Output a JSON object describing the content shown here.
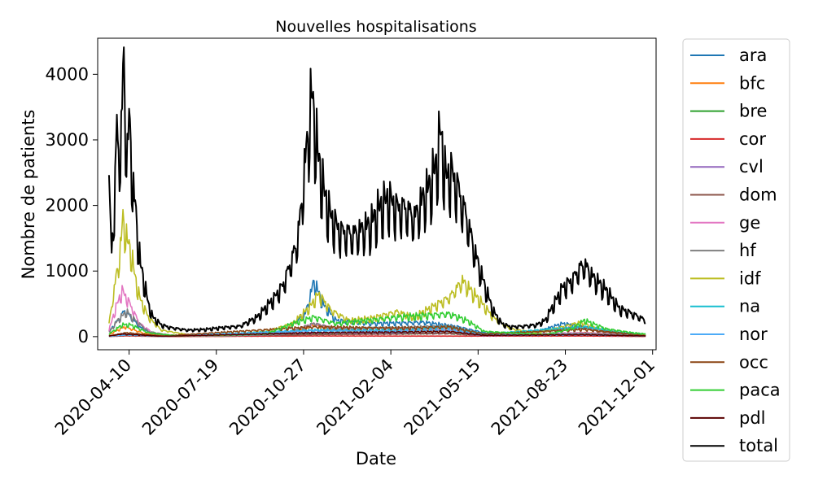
{
  "chart_data": {
    "type": "line",
    "title": "Nouvelles hospitalisations",
    "xlabel": "Date",
    "ylabel": "Nombre de patients",
    "x_range": [
      "2020-03-05",
      "2021-12-05"
    ],
    "ylim": [
      -200,
      4550
    ],
    "y_ticks": [
      0,
      1000,
      2000,
      3000,
      4000
    ],
    "x_ticks": [
      "2020-04-10",
      "2020-07-19",
      "2020-10-27",
      "2021-02-04",
      "2021-05-15",
      "2021-08-23",
      "2021-12-01"
    ],
    "grid": false,
    "legend_position": "outside right",
    "series": [
      {
        "name": "ara",
        "color": "#1f77b4",
        "values": [
          [
            0,
            80
          ],
          [
            10,
            250
          ],
          [
            18,
            400
          ],
          [
            25,
            300
          ],
          [
            35,
            150
          ],
          [
            50,
            40
          ],
          [
            80,
            10
          ],
          [
            130,
            10
          ],
          [
            200,
            60
          ],
          [
            225,
            350
          ],
          [
            235,
            850
          ],
          [
            245,
            500
          ],
          [
            260,
            250
          ],
          [
            300,
            200
          ],
          [
            360,
            220
          ],
          [
            400,
            150
          ],
          [
            430,
            60
          ],
          [
            480,
            30
          ],
          [
            520,
            200
          ],
          [
            545,
            150
          ],
          [
            590,
            40
          ],
          [
            615,
            40
          ]
        ]
      },
      {
        "name": "bfc",
        "color": "#ff7f0e",
        "values": [
          [
            0,
            30
          ],
          [
            10,
            100
          ],
          [
            18,
            150
          ],
          [
            25,
            120
          ],
          [
            40,
            50
          ],
          [
            60,
            15
          ],
          [
            130,
            5
          ],
          [
            200,
            20
          ],
          [
            235,
            180
          ],
          [
            260,
            90
          ],
          [
            330,
            90
          ],
          [
            390,
            90
          ],
          [
            430,
            25
          ],
          [
            500,
            10
          ],
          [
            545,
            60
          ],
          [
            615,
            15
          ]
        ]
      },
      {
        "name": "bre",
        "color": "#2ca02c",
        "values": [
          [
            0,
            10
          ],
          [
            15,
            40
          ],
          [
            30,
            25
          ],
          [
            60,
            5
          ],
          [
            200,
            15
          ],
          [
            235,
            60
          ],
          [
            330,
            50
          ],
          [
            390,
            50
          ],
          [
            430,
            15
          ],
          [
            545,
            40
          ],
          [
            615,
            10
          ]
        ]
      },
      {
        "name": "cor",
        "color": "#d62728",
        "values": [
          [
            0,
            3
          ],
          [
            20,
            12
          ],
          [
            60,
            2
          ],
          [
            235,
            10
          ],
          [
            390,
            8
          ],
          [
            545,
            10
          ],
          [
            615,
            3
          ]
        ]
      },
      {
        "name": "cvl",
        "color": "#9467bd",
        "values": [
          [
            0,
            10
          ],
          [
            15,
            40
          ],
          [
            35,
            20
          ],
          [
            60,
            5
          ],
          [
            235,
            60
          ],
          [
            330,
            50
          ],
          [
            390,
            50
          ],
          [
            430,
            15
          ],
          [
            545,
            30
          ],
          [
            615,
            10
          ]
        ]
      },
      {
        "name": "dom",
        "color": "#8c564b",
        "values": [
          [
            0,
            5
          ],
          [
            20,
            20
          ],
          [
            60,
            5
          ],
          [
            235,
            30
          ],
          [
            330,
            40
          ],
          [
            390,
            50
          ],
          [
            430,
            20
          ],
          [
            545,
            150
          ],
          [
            560,
            80
          ],
          [
            615,
            15
          ]
        ]
      },
      {
        "name": "ge",
        "color": "#e377c2",
        "values": [
          [
            0,
            100
          ],
          [
            8,
            450
          ],
          [
            15,
            700
          ],
          [
            22,
            550
          ],
          [
            35,
            200
          ],
          [
            50,
            60
          ],
          [
            80,
            10
          ],
          [
            130,
            10
          ],
          [
            200,
            40
          ],
          [
            235,
            200
          ],
          [
            260,
            120
          ],
          [
            330,
            120
          ],
          [
            390,
            120
          ],
          [
            430,
            30
          ],
          [
            545,
            60
          ],
          [
            615,
            15
          ]
        ]
      },
      {
        "name": "hf",
        "color": "#7f7f7f",
        "values": [
          [
            0,
            60
          ],
          [
            10,
            250
          ],
          [
            20,
            380
          ],
          [
            30,
            250
          ],
          [
            45,
            80
          ],
          [
            70,
            15
          ],
          [
            130,
            10
          ],
          [
            200,
            40
          ],
          [
            235,
            200
          ],
          [
            260,
            120
          ],
          [
            330,
            140
          ],
          [
            390,
            160
          ],
          [
            430,
            30
          ],
          [
            545,
            50
          ],
          [
            615,
            15
          ]
        ]
      },
      {
        "name": "idf",
        "color": "#bcbd22",
        "values": [
          [
            0,
            200
          ],
          [
            8,
            900
          ],
          [
            12,
            1200
          ],
          [
            16,
            1800
          ],
          [
            20,
            1500
          ],
          [
            25,
            1300
          ],
          [
            30,
            900
          ],
          [
            35,
            600
          ],
          [
            45,
            300
          ],
          [
            60,
            100
          ],
          [
            90,
            30
          ],
          [
            130,
            20
          ],
          [
            180,
            80
          ],
          [
            210,
            200
          ],
          [
            230,
            450
          ],
          [
            240,
            650
          ],
          [
            255,
            400
          ],
          [
            275,
            250
          ],
          [
            300,
            280
          ],
          [
            330,
            380
          ],
          [
            350,
            300
          ],
          [
            370,
            450
          ],
          [
            390,
            600
          ],
          [
            405,
            850
          ],
          [
            425,
            550
          ],
          [
            440,
            300
          ],
          [
            460,
            120
          ],
          [
            490,
            60
          ],
          [
            520,
            150
          ],
          [
            540,
            220
          ],
          [
            560,
            120
          ],
          [
            590,
            60
          ],
          [
            615,
            30
          ]
        ]
      },
      {
        "name": "na",
        "color": "#17becf",
        "values": [
          [
            0,
            5
          ],
          [
            20,
            30
          ],
          [
            60,
            5
          ],
          [
            235,
            100
          ],
          [
            330,
            100
          ],
          [
            390,
            150
          ],
          [
            430,
            40
          ],
          [
            545,
            150
          ],
          [
            615,
            15
          ]
        ]
      },
      {
        "name": "nor",
        "color": "#4dabf7",
        "values": [
          [
            0,
            5
          ],
          [
            20,
            30
          ],
          [
            60,
            5
          ],
          [
            235,
            90
          ],
          [
            330,
            80
          ],
          [
            390,
            100
          ],
          [
            430,
            25
          ],
          [
            545,
            30
          ],
          [
            615,
            8
          ]
        ]
      },
      {
        "name": "occ",
        "color": "#8b4513",
        "values": [
          [
            0,
            10
          ],
          [
            20,
            60
          ],
          [
            60,
            10
          ],
          [
            235,
            150
          ],
          [
            330,
            130
          ],
          [
            390,
            150
          ],
          [
            430,
            40
          ],
          [
            545,
            110
          ],
          [
            615,
            15
          ]
        ]
      },
      {
        "name": "paca",
        "color": "#32cd32",
        "values": [
          [
            0,
            40
          ],
          [
            15,
            180
          ],
          [
            25,
            180
          ],
          [
            45,
            60
          ],
          [
            80,
            10
          ],
          [
            180,
            40
          ],
          [
            210,
            200
          ],
          [
            235,
            300
          ],
          [
            260,
            200
          ],
          [
            330,
            300
          ],
          [
            390,
            350
          ],
          [
            410,
            250
          ],
          [
            430,
            80
          ],
          [
            500,
            30
          ],
          [
            530,
            120
          ],
          [
            545,
            250
          ],
          [
            570,
            120
          ],
          [
            600,
            60
          ],
          [
            615,
            40
          ]
        ]
      },
      {
        "name": "pdl",
        "color": "#5a0000",
        "values": [
          [
            0,
            10
          ],
          [
            15,
            40
          ],
          [
            30,
            30
          ],
          [
            60,
            5
          ],
          [
            235,
            60
          ],
          [
            330,
            70
          ],
          [
            390,
            80
          ],
          [
            430,
            20
          ],
          [
            545,
            30
          ],
          [
            615,
            10
          ]
        ]
      },
      {
        "name": "total",
        "color": "#000000",
        "values": [
          [
            0,
            2230
          ],
          [
            3,
            1300
          ],
          [
            6,
            2000
          ],
          [
            9,
            3150
          ],
          [
            12,
            2700
          ],
          [
            15,
            3400
          ],
          [
            17,
            4280
          ],
          [
            19,
            3100
          ],
          [
            21,
            2800
          ],
          [
            23,
            3250
          ],
          [
            25,
            3000
          ],
          [
            27,
            2300
          ],
          [
            30,
            2000
          ],
          [
            33,
            1500
          ],
          [
            36,
            1100
          ],
          [
            40,
            850
          ],
          [
            45,
            500
          ],
          [
            50,
            300
          ],
          [
            60,
            180
          ],
          [
            70,
            140
          ],
          [
            90,
            100
          ],
          [
            110,
            110
          ],
          [
            130,
            140
          ],
          [
            150,
            160
          ],
          [
            170,
            300
          ],
          [
            180,
            450
          ],
          [
            190,
            600
          ],
          [
            200,
            800
          ],
          [
            205,
            1000
          ],
          [
            210,
            1200
          ],
          [
            215,
            1400
          ],
          [
            220,
            1900
          ],
          [
            225,
            2700
          ],
          [
            228,
            3000
          ],
          [
            232,
            3700
          ],
          [
            236,
            3200
          ],
          [
            240,
            2700
          ],
          [
            245,
            2300
          ],
          [
            250,
            2000
          ],
          [
            255,
            1800
          ],
          [
            265,
            1600
          ],
          [
            280,
            1550
          ],
          [
            300,
            1700
          ],
          [
            310,
            1950
          ],
          [
            320,
            2100
          ],
          [
            330,
            1950
          ],
          [
            340,
            1950
          ],
          [
            350,
            1800
          ],
          [
            360,
            2100
          ],
          [
            368,
            2300
          ],
          [
            375,
            2600
          ],
          [
            380,
            3130
          ],
          [
            386,
            2400
          ],
          [
            392,
            2500
          ],
          [
            400,
            2250
          ],
          [
            410,
            1800
          ],
          [
            420,
            1250
          ],
          [
            430,
            800
          ],
          [
            440,
            400
          ],
          [
            450,
            200
          ],
          [
            460,
            150
          ],
          [
            475,
            160
          ],
          [
            490,
            180
          ],
          [
            500,
            250
          ],
          [
            510,
            500
          ],
          [
            520,
            750
          ],
          [
            530,
            850
          ],
          [
            540,
            1050
          ],
          [
            545,
            1100
          ],
          [
            555,
            900
          ],
          [
            570,
            700
          ],
          [
            585,
            430
          ],
          [
            600,
            350
          ],
          [
            615,
            250
          ]
        ]
      }
    ]
  }
}
